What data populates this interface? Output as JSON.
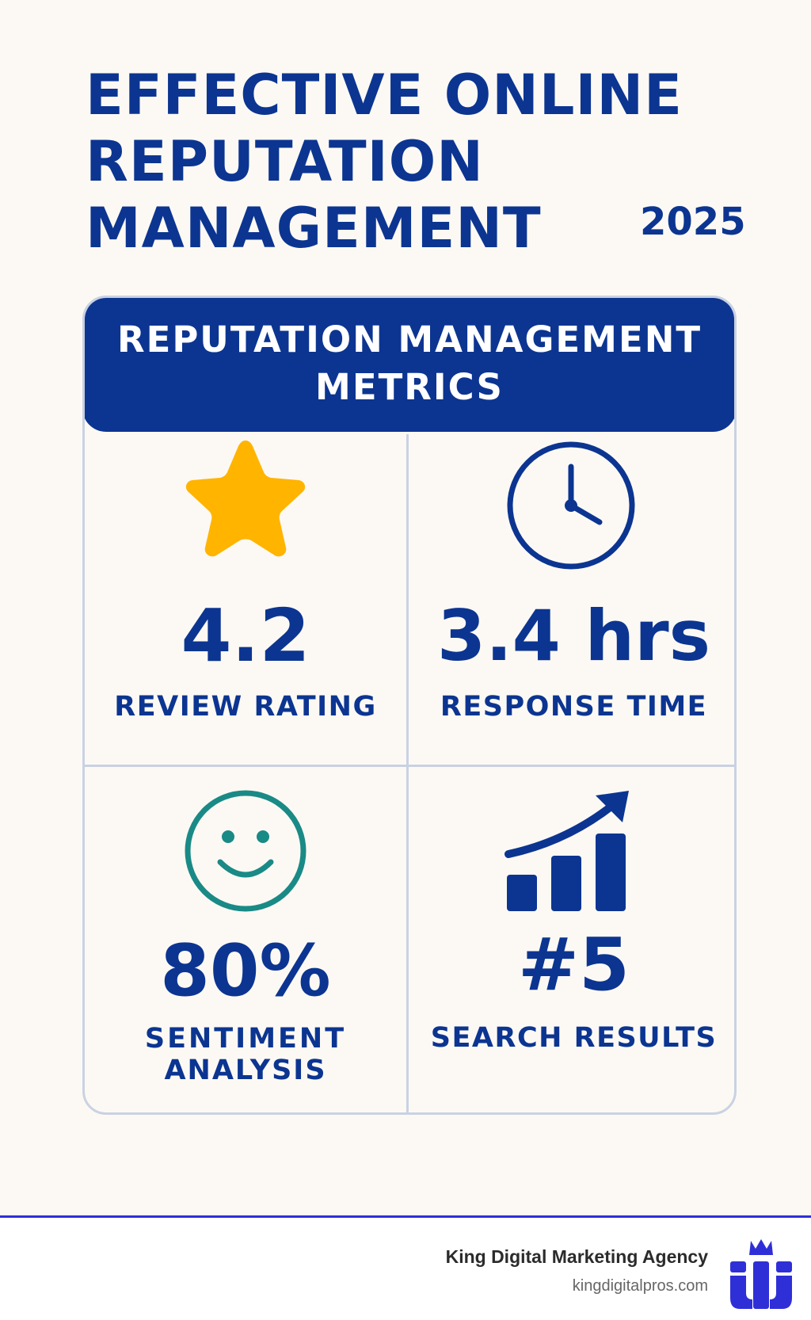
{
  "header": {
    "title_lines": [
      "EFFECTIVE ONLINE",
      "REPUTATION",
      "MANAGEMENT"
    ],
    "year": "2025"
  },
  "panel": {
    "title_lines": [
      "REPUTATION MANAGEMENT",
      "METRICS"
    ]
  },
  "metrics": {
    "review": {
      "value": "4.2",
      "label": "REVIEW RATING",
      "icon": "star-icon",
      "color": "#ffb400"
    },
    "response": {
      "value": "3.4 hrs",
      "label": "RESPONSE TIME",
      "icon": "clock-icon",
      "color": "#0c3591"
    },
    "sentiment": {
      "value": "80%",
      "label_lines": [
        "SENTIMENT",
        "ANALYSIS"
      ],
      "icon": "smiley-icon",
      "color": "#1a8a86"
    },
    "search": {
      "value": "#5",
      "label": "SEARCH RESULTS",
      "icon": "growth-chart-icon",
      "color": "#0c3591"
    }
  },
  "footer": {
    "agency": "King Digital Marketing Agency",
    "url": "kingdigitalpros.com",
    "logo": "crown-logo-icon",
    "accent": "#2f2fd8"
  }
}
